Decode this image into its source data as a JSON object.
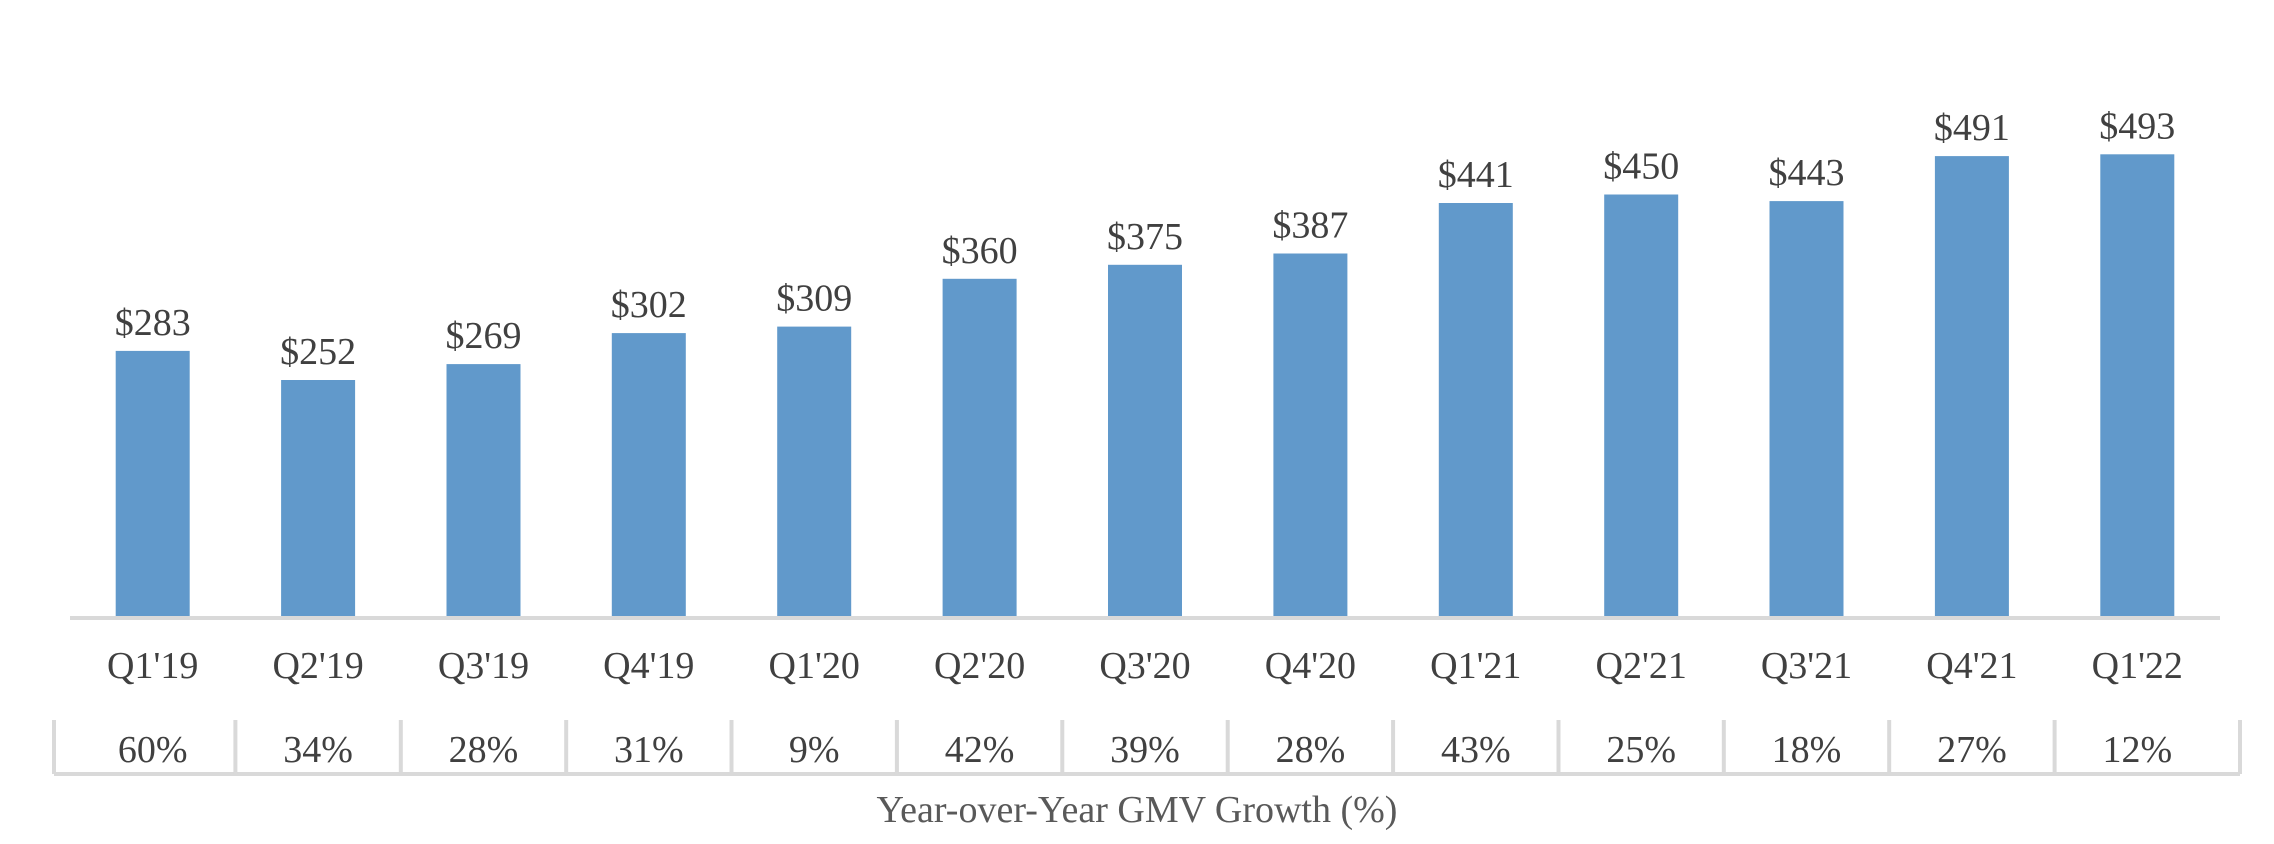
{
  "chart_data": {
    "type": "bar",
    "categories": [
      "Q1'19",
      "Q2'19",
      "Q3'19",
      "Q4'19",
      "Q1'20",
      "Q2'20",
      "Q3'20",
      "Q4'20",
      "Q1'21",
      "Q2'21",
      "Q3'21",
      "Q4'21",
      "Q1'22"
    ],
    "values": [
      283,
      252,
      269,
      302,
      309,
      360,
      375,
      387,
      441,
      450,
      443,
      491,
      493
    ],
    "value_labels": [
      "$283",
      "$252",
      "$269",
      "$302",
      "$309",
      "$360",
      "$375",
      "$387",
      "$441",
      "$450",
      "$443",
      "$491",
      "$493"
    ],
    "growth_labels": [
      "60%",
      "34%",
      "28%",
      "31%",
      "9%",
      "42%",
      "39%",
      "28%",
      "43%",
      "25%",
      "18%",
      "27%",
      "12%"
    ],
    "growth_title": "Year-over-Year GMV Growth (%)",
    "ylim": [
      0,
      560
    ],
    "grid": false,
    "bar_color": "#6199cb",
    "axis_color": "#d9d9d9",
    "text_color": "#404040"
  }
}
